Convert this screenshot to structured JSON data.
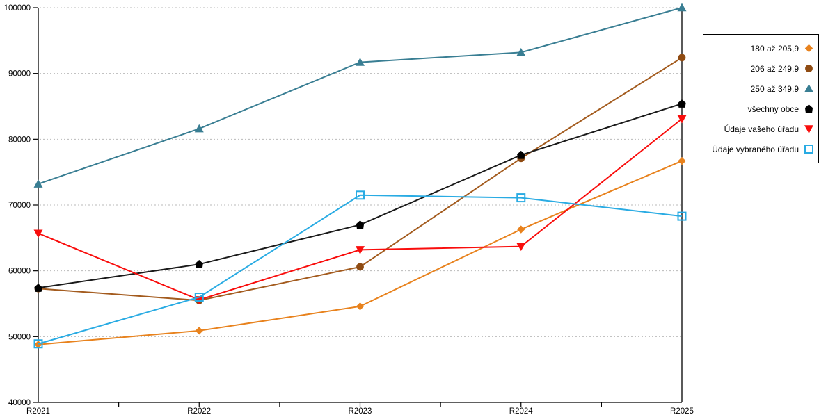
{
  "chart_data": {
    "type": "line",
    "title": "",
    "xlabel": "",
    "ylabel": "",
    "categories": [
      "R2021",
      "R2022",
      "R2023",
      "R2024",
      "R2025"
    ],
    "series": [
      {
        "name": "180 až 205,9",
        "marker": "diamond",
        "color": "#E8821D",
        "marker_color": "#E8821D",
        "values": [
          48800,
          50900,
          54600,
          66300,
          76700
        ]
      },
      {
        "name": "206 až 249,9",
        "marker": "circle",
        "color": "#A35B1E",
        "marker_color": "#8F4B12",
        "values": [
          57300,
          55500,
          60600,
          77100,
          92400
        ]
      },
      {
        "name": "250 až 349,9",
        "marker": "triangle-up",
        "color": "#397E93",
        "marker_color": "#397E93",
        "values": [
          73200,
          81600,
          91700,
          93200,
          100000
        ]
      },
      {
        "name": "všechny obce",
        "marker": "pentagon",
        "color": "#1A1A1A",
        "marker_color": "#000000",
        "values": [
          57400,
          61000,
          67000,
          77600,
          85400
        ]
      },
      {
        "name": "Údaje vašeho úřadu",
        "marker": "triangle-down",
        "color": "#F90D0C",
        "marker_color": "#F90D0C",
        "values": [
          65700,
          55600,
          63200,
          63700,
          83100
        ]
      },
      {
        "name": "Údaje vybraného úřadu",
        "marker": "square-open",
        "color": "#29ABE3",
        "marker_color": "#29ABE3",
        "values": [
          48900,
          56000,
          71500,
          71100,
          68300
        ]
      }
    ],
    "ylim": [
      40000,
      100000
    ],
    "ytick_step": 10000,
    "ytick_labels": [
      "40000",
      "50000",
      "60000",
      "70000",
      "80000",
      "90000",
      "100000"
    ],
    "grid": "horizontal-dotted",
    "gridline_color": "#B9B9B9",
    "axis_color": "#000000",
    "legend_position": "right"
  }
}
